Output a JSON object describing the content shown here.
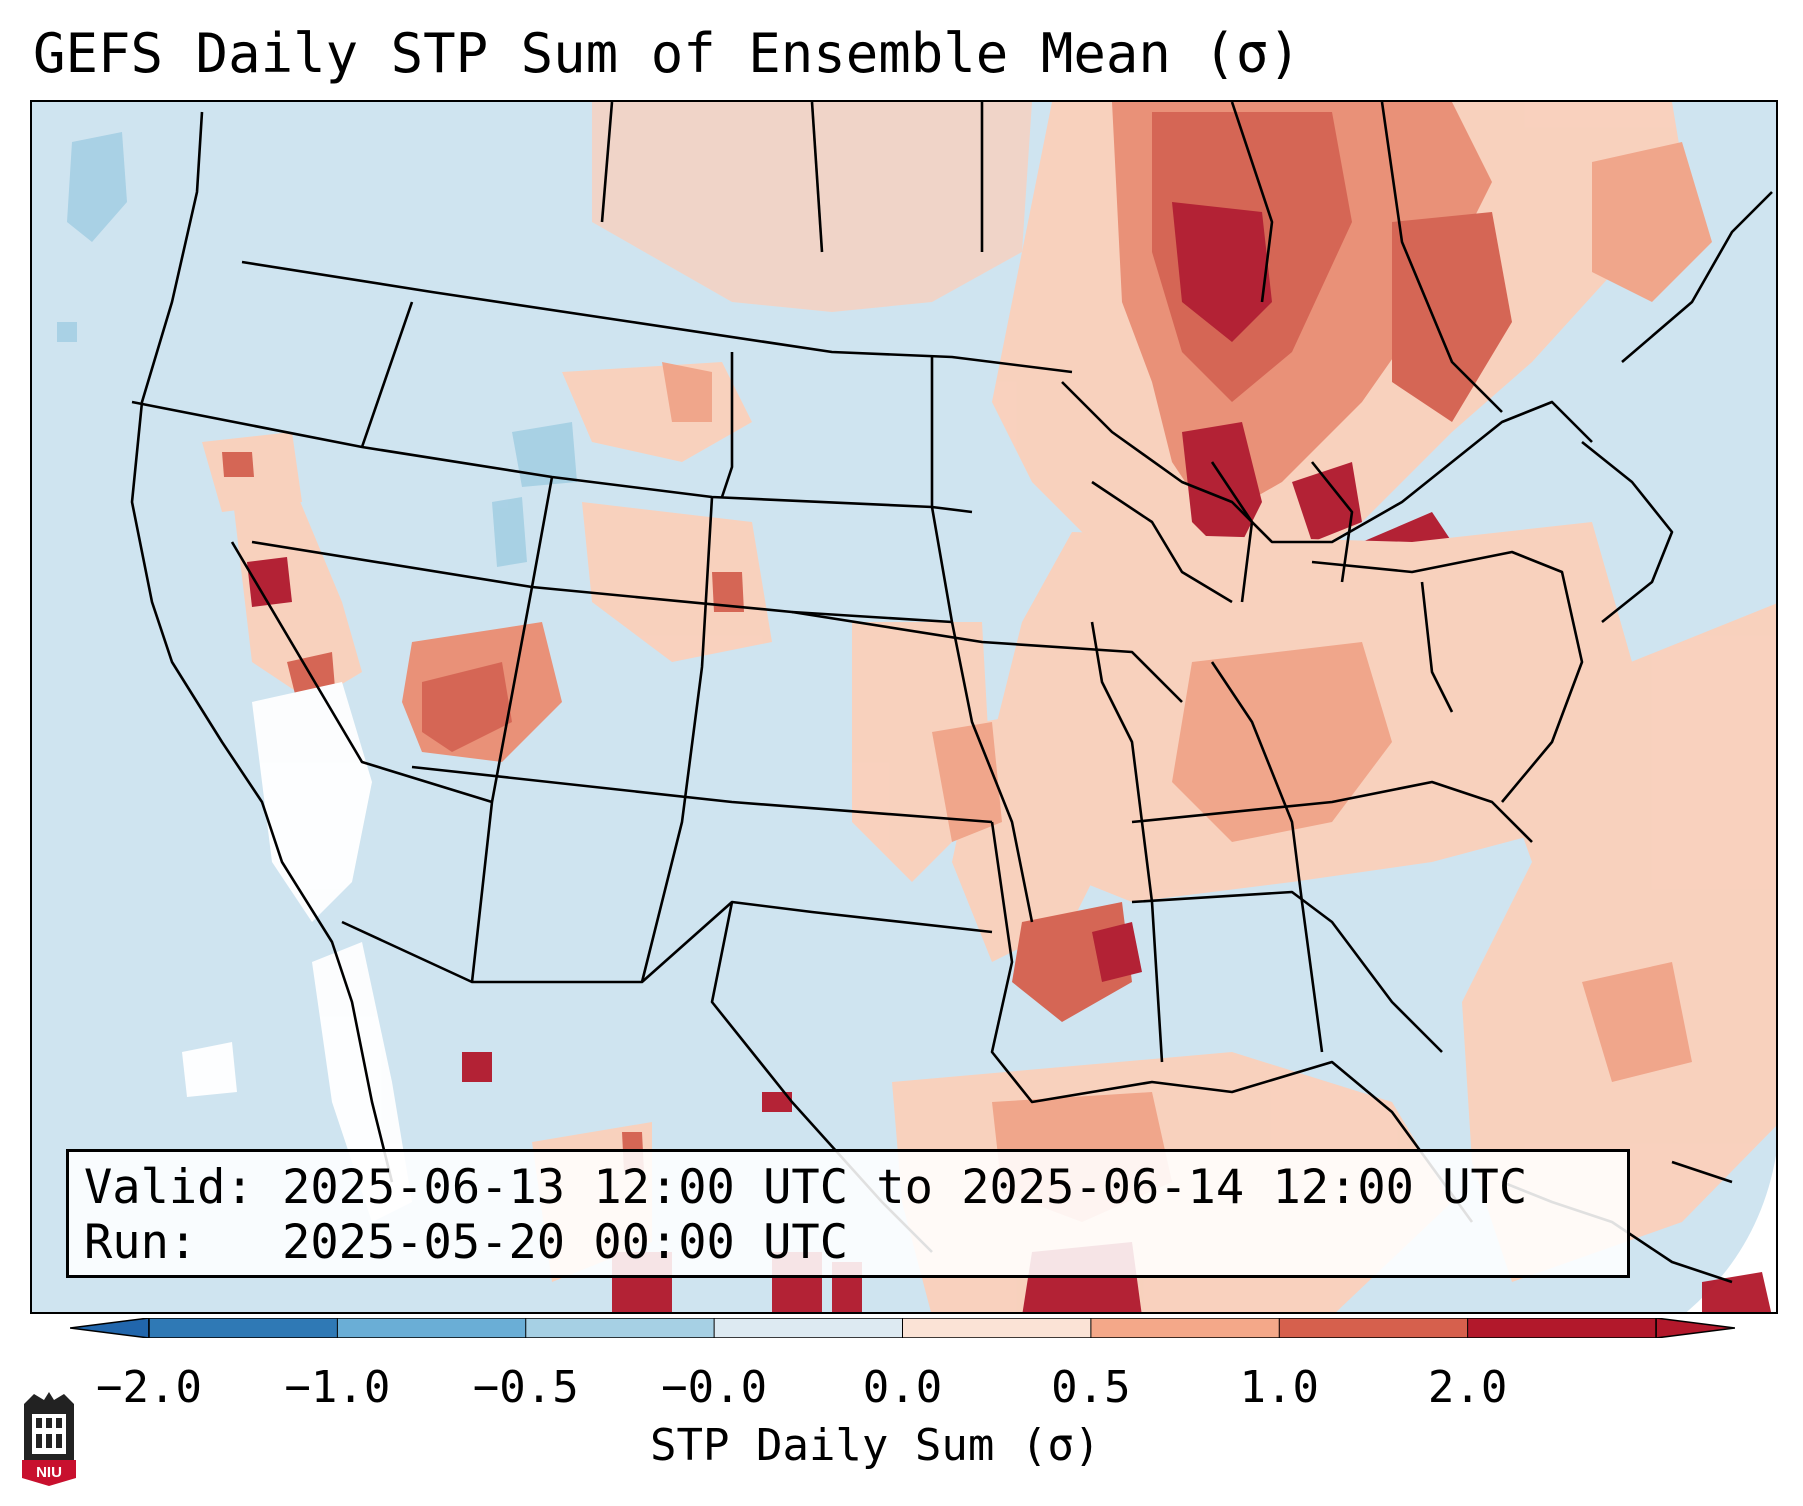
{
  "title": "GEFS Daily STP Sum of Ensemble Mean (σ)",
  "info": {
    "valid": "Valid: 2025-06-13 12:00 UTC to 2025-06-14 12:00 UTC",
    "run": "Run:   2025-05-20 00:00 UTC"
  },
  "colorbar": {
    "label": "STP Daily Sum (σ)",
    "ticks": [
      "−2.0",
      "−1.0",
      "−0.5",
      "−0.0",
      "0.0",
      "0.5",
      "1.0",
      "2.0"
    ],
    "colors": [
      "#2f79b5",
      "#6aaed6",
      "#a6d0e4",
      "#ddeaf2",
      "#fbe3d6",
      "#f4a889",
      "#d6604d",
      "#b2182b"
    ],
    "extend": "both"
  },
  "colors": {
    "ocean": "#cfe4f0",
    "land_base": "#cfe4f0",
    "near_zero_pos": "#fdd9c6",
    "mid_pos": "#f2a386",
    "high_pos": "#d6604d",
    "max_pos": "#b2182b",
    "neg": "#a6d0e4",
    "white": "#ffffff"
  },
  "logo": {
    "text": "NIU"
  }
}
